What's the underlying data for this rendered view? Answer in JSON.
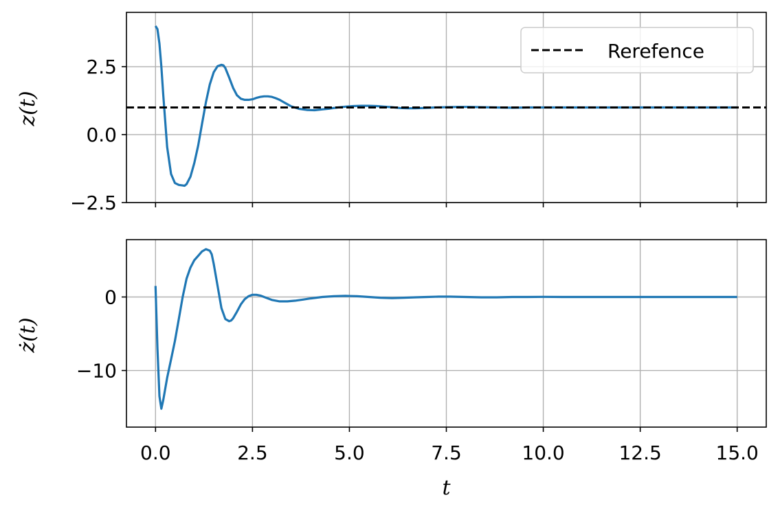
{
  "chart_data": [
    {
      "type": "line",
      "title": "",
      "xlabel": "",
      "ylabel": "z(t)",
      "xlim": [
        -0.75,
        15.75
      ],
      "ylim": [
        -2.5,
        4.5
      ],
      "yticks": [
        -2.5,
        0.0,
        2.5
      ],
      "ytick_labels": [
        "−2.5",
        "0.0",
        "2.5"
      ],
      "xticks": [
        0,
        2.5,
        5,
        7.5,
        10,
        12.5,
        15
      ],
      "grid": true,
      "legend": {
        "placement": "top-right",
        "entries": [
          "Rerefence"
        ]
      },
      "series": [
        {
          "name": "",
          "color": "#1f77b4",
          "style": "solid",
          "x": [
            0,
            0.05,
            0.1,
            0.15,
            0.2,
            0.3,
            0.4,
            0.5,
            0.6,
            0.7,
            0.75,
            0.8,
            0.9,
            1.0,
            1.1,
            1.2,
            1.3,
            1.4,
            1.5,
            1.6,
            1.7,
            1.75,
            1.8,
            1.9,
            2.0,
            2.1,
            2.2,
            2.3,
            2.4,
            2.5,
            2.6,
            2.7,
            2.8,
            2.9,
            3.0,
            3.1,
            3.2,
            3.3,
            3.4,
            3.5,
            3.7,
            3.9,
            4.1,
            4.3,
            4.5,
            4.7,
            4.9,
            5.1,
            5.3,
            5.5,
            5.7,
            5.9,
            6.1,
            6.3,
            6.5,
            6.7,
            6.9,
            7.2,
            7.5,
            7.8,
            8.1,
            8.4,
            8.8,
            9.2,
            9.6,
            10.0,
            10.5,
            11.0,
            11.5,
            12.0,
            12.5,
            13.0,
            13.5,
            14.0,
            14.5,
            15.0
          ],
          "y": [
            4.0,
            3.88,
            3.35,
            2.5,
            1.45,
            -0.45,
            -1.45,
            -1.78,
            -1.85,
            -1.87,
            -1.88,
            -1.82,
            -1.55,
            -1.05,
            -0.4,
            0.4,
            1.2,
            1.85,
            2.3,
            2.52,
            2.57,
            2.55,
            2.45,
            2.1,
            1.72,
            1.45,
            1.32,
            1.28,
            1.28,
            1.3,
            1.35,
            1.39,
            1.41,
            1.41,
            1.39,
            1.34,
            1.28,
            1.2,
            1.12,
            1.04,
            0.95,
            0.91,
            0.9,
            0.93,
            0.96,
            1.0,
            1.03,
            1.05,
            1.06,
            1.06,
            1.05,
            1.03,
            1.01,
            0.98,
            0.97,
            0.97,
            0.98,
            1.0,
            1.01,
            1.02,
            1.02,
            1.01,
            1.0,
            0.99,
            1.0,
            1.0,
            1.0,
            1.0,
            1.0,
            1.0,
            1.0,
            1.0,
            1.0,
            1.0,
            1.0,
            1.0
          ]
        },
        {
          "name": "Rerefence",
          "color": "#000000",
          "style": "dashed",
          "x": [
            -0.75,
            15.75
          ],
          "y": [
            1.0,
            1.0
          ]
        }
      ]
    },
    {
      "type": "line",
      "title": "",
      "xlabel": "t",
      "ylabel": "ż(t)",
      "xlim": [
        -0.75,
        15.75
      ],
      "ylim": [
        -17.7,
        7.8
      ],
      "yticks": [
        -10,
        0
      ],
      "ytick_labels": [
        "−10",
        "0"
      ],
      "xticks": [
        0,
        2.5,
        5,
        7.5,
        10,
        12.5,
        15
      ],
      "xtick_labels": [
        "0.0",
        "2.5",
        "5.0",
        "7.5",
        "10.0",
        "12.5",
        "15.0"
      ],
      "grid": true,
      "series": [
        {
          "name": "",
          "color": "#1f77b4",
          "style": "solid",
          "x": [
            0,
            0.05,
            0.1,
            0.15,
            0.2,
            0.3,
            0.4,
            0.5,
            0.6,
            0.7,
            0.8,
            0.9,
            1.0,
            1.1,
            1.2,
            1.3,
            1.4,
            1.45,
            1.5,
            1.6,
            1.7,
            1.8,
            1.9,
            1.95,
            2.0,
            2.1,
            2.2,
            2.3,
            2.4,
            2.5,
            2.6,
            2.7,
            2.8,
            2.9,
            3.0,
            3.2,
            3.4,
            3.6,
            3.8,
            4.0,
            4.3,
            4.6,
            4.9,
            5.2,
            5.5,
            5.8,
            6.1,
            6.4,
            6.7,
            7.0,
            7.3,
            7.6,
            8.0,
            8.4,
            8.8,
            9.2,
            9.6,
            10.0,
            10.5,
            11.0,
            11.5,
            12.0,
            12.5,
            13.0,
            13.5,
            14.0,
            14.5,
            15.0
          ],
          "y": [
            1.5,
            -7.0,
            -13.5,
            -15.2,
            -14.0,
            -11.0,
            -8.5,
            -6.0,
            -3.0,
            0.0,
            2.5,
            4.0,
            5.0,
            5.6,
            6.2,
            6.5,
            6.3,
            5.8,
            4.5,
            1.5,
            -1.5,
            -3.0,
            -3.3,
            -3.2,
            -2.9,
            -2.0,
            -1.0,
            -0.3,
            0.1,
            0.3,
            0.3,
            0.2,
            0.0,
            -0.2,
            -0.4,
            -0.6,
            -0.6,
            -0.5,
            -0.35,
            -0.2,
            0.0,
            0.1,
            0.15,
            0.1,
            0.0,
            -0.1,
            -0.15,
            -0.1,
            -0.05,
            0.0,
            0.05,
            0.05,
            0.0,
            -0.05,
            -0.05,
            0.0,
            0.0,
            0.02,
            0.0,
            0.0,
            0.0,
            0.0,
            0.0,
            0.0,
            0.0,
            0.0,
            0.0,
            0.0
          ]
        }
      ]
    }
  ]
}
